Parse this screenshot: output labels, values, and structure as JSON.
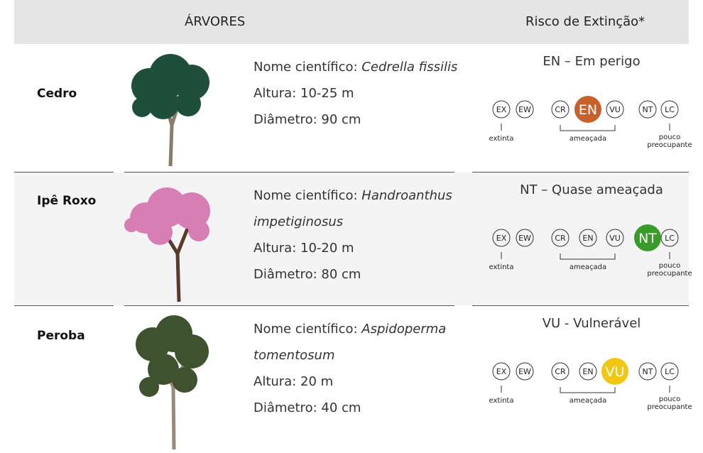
{
  "header": {
    "trees": "ÁRVORES",
    "risk": "Risco de Extinção*"
  },
  "scale": {
    "codes": [
      "EX",
      "EW",
      "CR",
      "EN",
      "VU",
      "NT",
      "LC"
    ],
    "extinct": "extinta",
    "threatened": "ameaçada",
    "least": [
      "pouco",
      "preocupante"
    ]
  },
  "rows": [
    {
      "name": "Cedro",
      "scientific_label": "Nome científico:",
      "scientific_name": "Cedrella fissilis",
      "height": "Altura: 10-25 m",
      "diameter": "Diâmetro: 90 cm",
      "risk": "EN – Em perigo",
      "status": "EN",
      "color": "#c8602e"
    },
    {
      "name": "Ipê Roxo",
      "scientific_label": "Nome científico:",
      "scientific_name": "Handroanthus impetiginosus",
      "height": "Altura: 10-20 m",
      "diameter": "Diâmetro: 80 cm",
      "risk": "NT – Quase ameaçada",
      "status": "NT",
      "color": "#3a9a2a"
    },
    {
      "name": "Peroba",
      "scientific_label": "Nome científico:",
      "scientific_name": "Aspidoperma tomentosum",
      "height": "Altura: 20 m",
      "diameter": "Diâmetro: 40 cm",
      "risk": "VU - Vulnerável",
      "status": "VU",
      "color": "#f2c614"
    }
  ]
}
